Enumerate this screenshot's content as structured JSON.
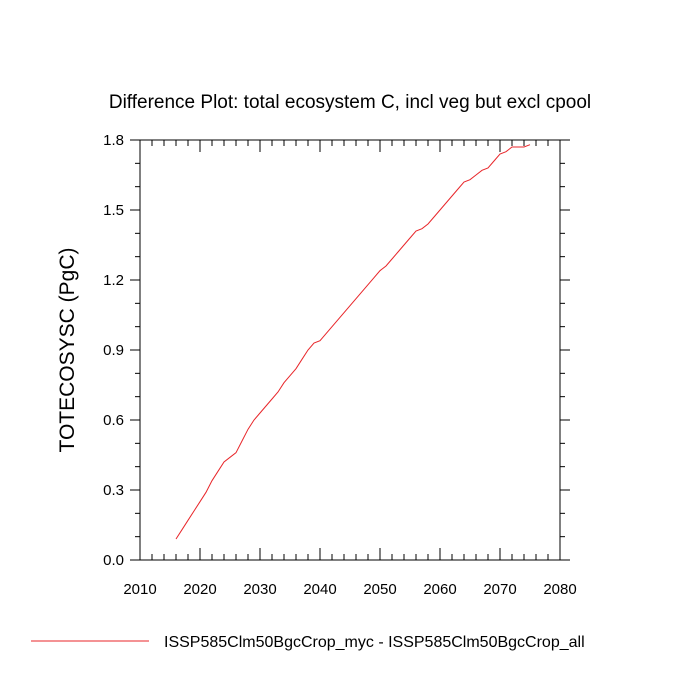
{
  "chart_data": {
    "type": "line",
    "title": "Difference Plot: total ecosystem C, incl veg but excl cpool",
    "ylabel": "TOTECOSYSC  (PgC)",
    "xlabel": "",
    "xlim": [
      2010,
      2080
    ],
    "ylim": [
      0.0,
      1.8
    ],
    "x_ticks": [
      2010,
      2020,
      2030,
      2040,
      2050,
      2060,
      2070,
      2080
    ],
    "x_tick_labels": [
      "2010",
      "2020",
      "2030",
      "2040",
      "2050",
      "2060",
      "2070",
      "2080"
    ],
    "y_ticks": [
      0.0,
      0.3,
      0.6,
      0.9,
      1.2,
      1.5,
      1.8
    ],
    "y_tick_labels": [
      "0.0",
      "0.3",
      "0.6",
      "0.9",
      "1.2",
      "1.5",
      "1.8"
    ],
    "grid": false,
    "legend_position": "bottom",
    "series": [
      {
        "name": "ISSP585Clm50BgcCrop_myc - ISSP585Clm50BgcCrop_all",
        "color": "#e8262a",
        "x": [
          2016,
          2017,
          2018,
          2019,
          2020,
          2021,
          2022,
          2023,
          2024,
          2025,
          2026,
          2027,
          2028,
          2029,
          2030,
          2031,
          2032,
          2033,
          2034,
          2035,
          2036,
          2037,
          2038,
          2039,
          2040,
          2041,
          2042,
          2043,
          2044,
          2045,
          2046,
          2047,
          2048,
          2049,
          2050,
          2051,
          2052,
          2053,
          2054,
          2055,
          2056,
          2057,
          2058,
          2059,
          2060,
          2061,
          2062,
          2063,
          2064,
          2065,
          2066,
          2067,
          2068,
          2069,
          2070,
          2071,
          2072,
          2073,
          2074,
          2075
        ],
        "y": [
          0.09,
          0.13,
          0.17,
          0.21,
          0.25,
          0.29,
          0.34,
          0.38,
          0.42,
          0.44,
          0.46,
          0.51,
          0.56,
          0.6,
          0.63,
          0.66,
          0.69,
          0.72,
          0.76,
          0.79,
          0.82,
          0.86,
          0.9,
          0.93,
          0.94,
          0.97,
          1.0,
          1.03,
          1.06,
          1.09,
          1.12,
          1.15,
          1.18,
          1.21,
          1.24,
          1.26,
          1.29,
          1.32,
          1.35,
          1.38,
          1.41,
          1.42,
          1.44,
          1.47,
          1.5,
          1.53,
          1.56,
          1.59,
          1.62,
          1.63,
          1.65,
          1.67,
          1.68,
          1.71,
          1.74,
          1.75,
          1.77,
          1.77,
          1.77,
          1.78
        ]
      }
    ]
  }
}
